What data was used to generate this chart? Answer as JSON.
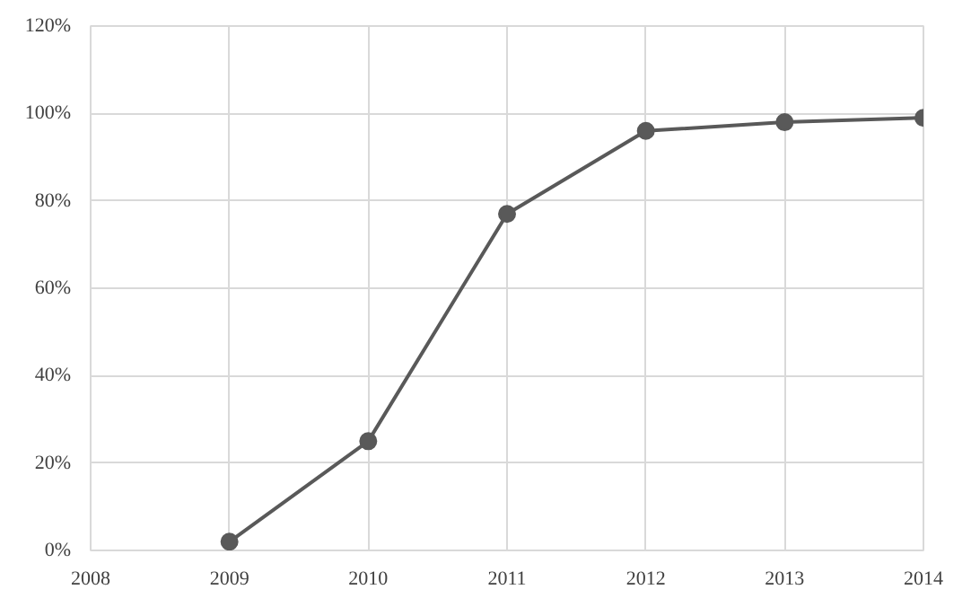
{
  "chart_data": {
    "type": "line",
    "x": [
      2009,
      2010,
      2011,
      2012,
      2013,
      2014
    ],
    "series": [
      {
        "color": "#595959",
        "values": [
          2,
          25,
          77,
          96,
          98,
          99
        ]
      }
    ],
    "xlim": [
      2008,
      2014
    ],
    "xticks": [
      2008,
      2009,
      2010,
      2011,
      2012,
      2013,
      2014
    ],
    "ylim": [
      0,
      120
    ],
    "yticks": [
      {
        "value": 0,
        "label": "0%"
      },
      {
        "value": 20,
        "label": "20%"
      },
      {
        "value": 40,
        "label": "40%"
      },
      {
        "value": 60,
        "label": "60%"
      },
      {
        "value": 80,
        "label": "80%"
      },
      {
        "value": 100,
        "label": "100%"
      },
      {
        "value": 120,
        "label": "120%"
      }
    ],
    "grid": true,
    "marker": "circle",
    "line_style": "solid"
  }
}
